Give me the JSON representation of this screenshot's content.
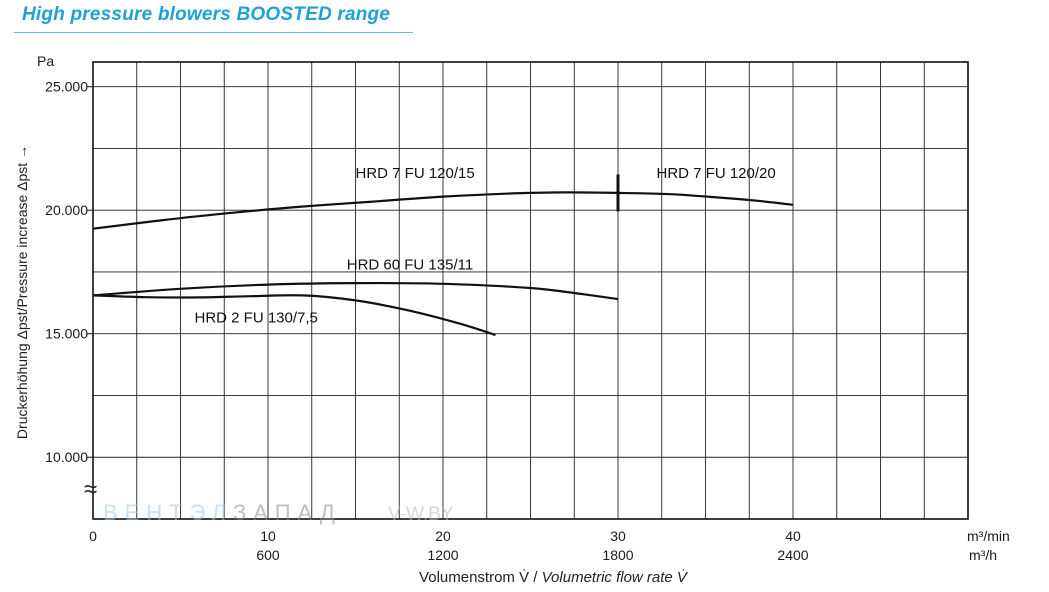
{
  "title": "High pressure blowers BOOSTED range",
  "chart_data": {
    "type": "line",
    "y_unit": "Pa",
    "ylabel": "Druckerhöhung Δpst/Pressure increase Δpst →",
    "xlabel_de": "Volumenstrom V̇ / ",
    "xlabel_en": "Volumetric flow rate V̇",
    "x_unit_primary": "m³/min",
    "x_unit_secondary": "m³/h",
    "xlim": [
      0,
      50
    ],
    "ylim": [
      7500,
      26000
    ],
    "y_ticks": [
      {
        "value": 10000,
        "label": "10.000"
      },
      {
        "value": 15000,
        "label": "15.000"
      },
      {
        "value": 20000,
        "label": "20.000"
      },
      {
        "value": 25000,
        "label": "25.000"
      }
    ],
    "x_ticks_primary": [
      {
        "value": 0,
        "label": "0"
      },
      {
        "value": 10,
        "label": "10"
      },
      {
        "value": 20,
        "label": "20"
      },
      {
        "value": 30,
        "label": "30"
      },
      {
        "value": 40,
        "label": "40"
      }
    ],
    "x_ticks_secondary": [
      {
        "value": 10,
        "label": "600"
      },
      {
        "value": 20,
        "label": "1200"
      },
      {
        "value": 30,
        "label": "1800"
      },
      {
        "value": 40,
        "label": "2400"
      }
    ],
    "grid": true,
    "axis_break_symbol": "≈",
    "series": [
      {
        "name": "HRD 7 FU 120/15",
        "label_at": [
          15,
          21300
        ],
        "points": [
          [
            0,
            19250
          ],
          [
            4,
            19600
          ],
          [
            8,
            19900
          ],
          [
            12,
            20150
          ],
          [
            16,
            20350
          ],
          [
            20,
            20550
          ],
          [
            24,
            20680
          ],
          [
            27,
            20720
          ],
          [
            30,
            20700
          ]
        ]
      },
      {
        "name": "HRD 7 FU 120/20",
        "label_at": [
          32.2,
          21300
        ],
        "points": [
          [
            30,
            20700
          ],
          [
            33,
            20650
          ],
          [
            36,
            20500
          ],
          [
            38,
            20380
          ],
          [
            40,
            20220
          ]
        ]
      },
      {
        "name": "HRD 60 FU 135/11",
        "label_at": [
          14.5,
          17600
        ],
        "points": [
          [
            0,
            16550
          ],
          [
            5,
            16820
          ],
          [
            10,
            16990
          ],
          [
            15,
            17050
          ],
          [
            20,
            17020
          ],
          [
            25,
            16850
          ],
          [
            28,
            16600
          ],
          [
            30,
            16400
          ]
        ]
      },
      {
        "name": "HRD 2 FU 130/7,5",
        "label_at": [
          5.8,
          15450
        ],
        "points": [
          [
            0,
            16550
          ],
          [
            3,
            16480
          ],
          [
            6,
            16470
          ],
          [
            9,
            16520
          ],
          [
            12,
            16550
          ],
          [
            15,
            16350
          ],
          [
            18,
            15950
          ],
          [
            21,
            15400
          ],
          [
            23,
            14950
          ]
        ]
      }
    ],
    "marker": {
      "x": 30,
      "y_from": 19950,
      "y_to": 21450
    }
  },
  "watermark": {
    "left": "ВЕНТЭЛ",
    "right": "ЗАПАД",
    "site": "V-W.BY"
  }
}
